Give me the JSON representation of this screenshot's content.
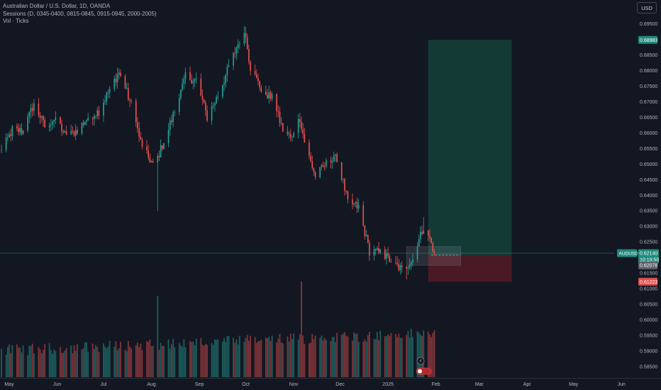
{
  "legend": {
    "symbol_line": "Australian Dollar / U.S. Dollar, 1D, OANDA",
    "sessions_line": "Sessions (D, 0345-0400, 0815-0845, 0915-0945, 2000-2005)",
    "volume_line": "Vol · Ticks"
  },
  "currency_button": "USD",
  "price_axis": {
    "ticks": [
      "0.69500",
      "0.69000",
      "0.68500",
      "0.68000",
      "0.67500",
      "0.67000",
      "0.66500",
      "0.66000",
      "0.65500",
      "0.65000",
      "0.64500",
      "0.64000",
      "0.63500",
      "0.63000",
      "0.62500",
      "0.62000",
      "0.61500",
      "0.61000",
      "0.60500",
      "0.60000",
      "0.59500",
      "0.59000",
      "0.58500"
    ],
    "target_label": "0.68983",
    "current_symbol": "AUDUSD",
    "current_price": "0.62140",
    "countdown": "10:19:50",
    "entry_label": "0.62078",
    "stop_label": "0.61223"
  },
  "time_axis": {
    "labels": [
      "May",
      "Jun",
      "Jul",
      "Aug",
      "Sep",
      "Oct",
      "Nov",
      "Dec",
      "2025",
      "Feb",
      "Mar",
      "Apr",
      "May",
      "Jun"
    ]
  },
  "colors": {
    "background": "#131722",
    "up": "#26a69a",
    "down": "#ef5350",
    "target_zone": "#143a36",
    "stop_zone": "#4a1a24",
    "grid_text": "#b2b5be",
    "current_price_line": "#26a69a"
  },
  "chart_data": {
    "type": "candlestick",
    "title": "Australian Dollar / U.S. Dollar, 1D, OANDA",
    "ylim": [
      0.5835,
      0.6975
    ],
    "x_start": "2024-04-26",
    "close_anchors": [
      [
        "2024-04-26",
        0.654
      ],
      [
        "2024-05-03",
        0.661
      ],
      [
        "2024-05-10",
        0.6605
      ],
      [
        "2024-05-17",
        0.6695
      ],
      [
        "2024-05-24",
        0.662
      ],
      [
        "2024-05-31",
        0.665
      ],
      [
        "2024-06-07",
        0.6585
      ],
      [
        "2024-06-14",
        0.661
      ],
      [
        "2024-06-21",
        0.665
      ],
      [
        "2024-06-28",
        0.667
      ],
      [
        "2024-07-05",
        0.674
      ],
      [
        "2024-07-11",
        0.6795
      ],
      [
        "2024-07-19",
        0.669
      ],
      [
        "2024-07-26",
        0.655
      ],
      [
        "2024-08-02",
        0.65
      ],
      [
        "2024-08-05",
        0.652
      ],
      [
        "2024-08-16",
        0.667
      ],
      [
        "2024-08-23",
        0.678
      ],
      [
        "2024-08-30",
        0.677
      ],
      [
        "2024-09-06",
        0.665
      ],
      [
        "2024-09-13",
        0.672
      ],
      [
        "2024-09-20",
        0.681
      ],
      [
        "2024-09-30",
        0.6935
      ],
      [
        "2024-10-04",
        0.681
      ],
      [
        "2024-10-11",
        0.674
      ],
      [
        "2024-10-18",
        0.671
      ],
      [
        "2024-10-25",
        0.661
      ],
      [
        "2024-10-31",
        0.658
      ],
      [
        "2024-11-05",
        0.665
      ],
      [
        "2024-11-08",
        0.657
      ],
      [
        "2024-11-15",
        0.646
      ],
      [
        "2024-11-22",
        0.65
      ],
      [
        "2024-11-29",
        0.652
      ],
      [
        "2024-12-06",
        0.638
      ],
      [
        "2024-12-13",
        0.636
      ],
      [
        "2024-12-20",
        0.622
      ],
      [
        "2024-12-27",
        0.6215
      ],
      [
        "2025-01-03",
        0.619
      ],
      [
        "2025-01-10",
        0.616
      ],
      [
        "2025-01-17",
        0.6195
      ],
      [
        "2025-01-24",
        0.63
      ],
      [
        "2025-01-28",
        0.626
      ],
      [
        "2025-01-31",
        0.6214
      ]
    ],
    "events": [
      {
        "date": "2024-08-05",
        "low": 0.6349
      },
      {
        "date": "2024-09-30",
        "high": 0.6942
      },
      {
        "date": "2025-01-13",
        "low": 0.613
      },
      {
        "date": "2025-01-24",
        "high": 0.633
      }
    ],
    "volume": {
      "spikes": [
        {
          "date": "2024-08-05",
          "relative": 0.85
        },
        {
          "date": "2024-11-06",
          "relative": 1.0
        }
      ]
    },
    "position": {
      "type": "long",
      "start": "2025-01-27",
      "end": "2025-03-22",
      "entry": 0.62078,
      "target": 0.68983,
      "stop": 0.61223
    },
    "consolidation_box": {
      "start": "2025-01-13",
      "end": "2025-02-17",
      "top": 0.6235,
      "bottom": 0.6175
    },
    "current_price": 0.6214
  }
}
